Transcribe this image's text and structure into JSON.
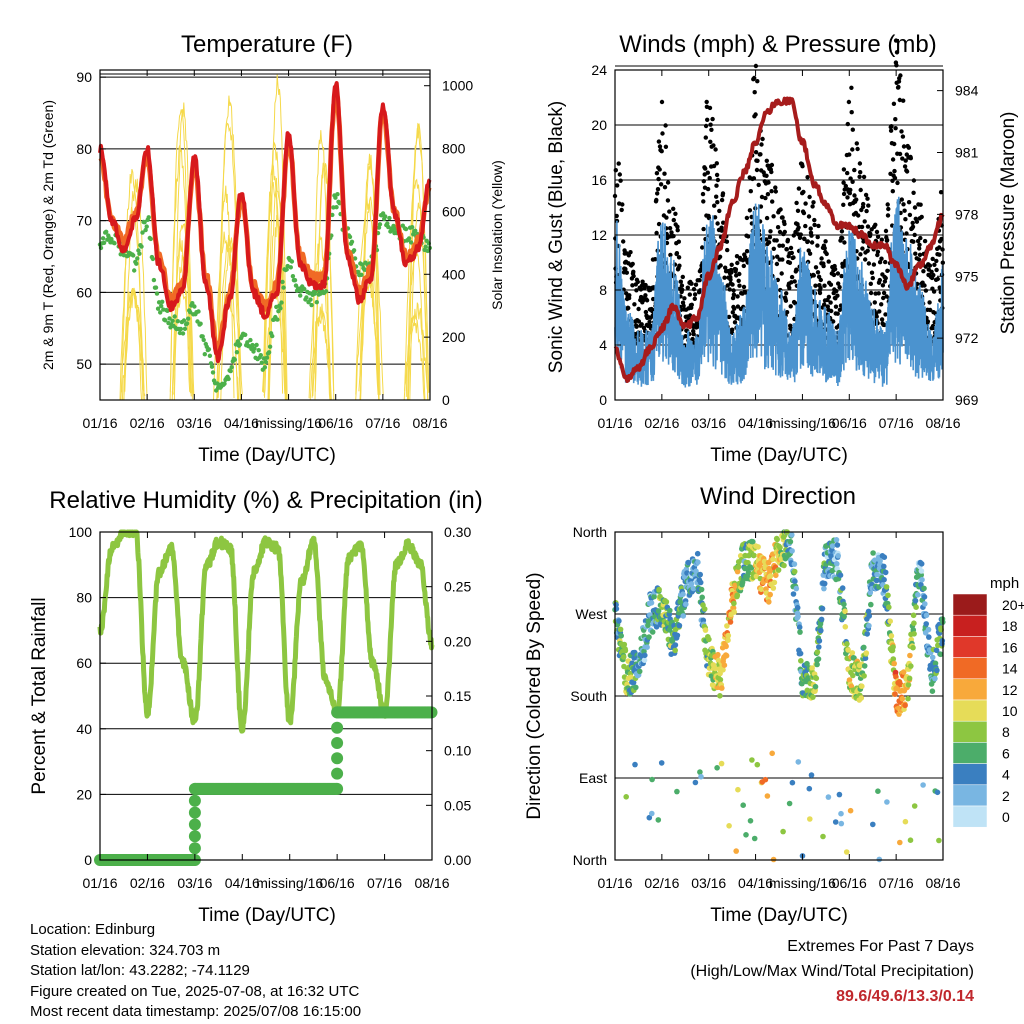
{
  "colors": {
    "temp2m": "#d7191c",
    "temp9m": "#f06a25",
    "dewpoint": "#4cb04a",
    "solar": "#f5d94a",
    "wind": "#4b93cf",
    "gust": "#000000",
    "pressure": "#a61c1c",
    "rh": "#8dc641",
    "precip": "#4cb04a",
    "extremes": "#c0282d"
  },
  "time_ticks": [
    "01/16",
    "02/16",
    "03/16",
    "04/16",
    "missing/16",
    "06/16",
    "07/16",
    "08/16"
  ],
  "xlabel": "Time (Day/UTC)",
  "panels": {
    "temperature": {
      "title": "Temperature (F)",
      "ylabel_left": "2m & 9m T (Red, Orange) & 2m Td (Green)",
      "ylabel_right": "Solar Insolation (Yellow)",
      "left_ticks": [
        "50",
        "60",
        "70",
        "80",
        "90"
      ],
      "right_ticks": [
        "0",
        "200",
        "400",
        "600",
        "800",
        "1000"
      ]
    },
    "winds": {
      "title": "Winds (mph) & Pressure (mb)",
      "ylabel_left": "Sonic Wind & Gust (Blue, Black)",
      "ylabel_right": "Station Pressure (Maroon)",
      "left_ticks": [
        "0",
        "4",
        "8",
        "12",
        "16",
        "20",
        "24"
      ],
      "right_ticks": [
        "969",
        "972",
        "975",
        "978",
        "981",
        "984"
      ]
    },
    "humidity": {
      "title": "Relative Humidity (%) & Precipitation (in)",
      "ylabel_left": "Percent & Total Rainfall",
      "left_ticks": [
        "0",
        "20",
        "40",
        "60",
        "80",
        "100"
      ],
      "right_ticks": [
        "0.00",
        "0.05",
        "0.10",
        "0.15",
        "0.20",
        "0.25",
        "0.30"
      ]
    },
    "direction": {
      "title": "Wind Direction",
      "ylabel_left": "Direction (Colored By Speed)",
      "left_ticks": [
        "North",
        "East",
        "South",
        "West",
        "North"
      ],
      "legend_title": "mph",
      "legend_labels": [
        "20+",
        "18",
        "16",
        "14",
        "12",
        "10",
        "8",
        "6",
        "4",
        "2",
        "0"
      ],
      "legend_colors": [
        "#9b1b1b",
        "#c8201f",
        "#e0382a",
        "#f06a25",
        "#f8a93b",
        "#e6dc58",
        "#8dc641",
        "#4cad6a",
        "#3a7fc0",
        "#79b6e2",
        "#bfe3f6"
      ]
    }
  },
  "info": {
    "location": "Location: Edinburg",
    "elevation": "Station elevation: 324.703 m",
    "latlon": "Station lat/lon: 43.2282; -74.1129",
    "created": "Figure created on Tue, 2025-07-08, at 16:32 UTC",
    "recent": "Most recent data timestamp: 2025/07/08 16:15:00",
    "extremes_title": "Extremes For Past 7 Days",
    "extremes_subtitle": "(High/Low/Max Wind/Total Precipitation)",
    "extremes_values": "89.6/49.6/13.3/0.14"
  },
  "chart_data": [
    {
      "type": "line",
      "title": "Temperature (F)",
      "xlabel": "Time (Day/UTC)",
      "ylabel": "2m & 9m T (Red, Orange) & 2m Td (Green)",
      "y2label": "Solar Insolation (Yellow)",
      "x_ticks": [
        "01/16",
        "02/16",
        "03/16",
        "04/16",
        "missing/16",
        "06/16",
        "07/16",
        "08/16"
      ],
      "ylim": [
        45,
        91
      ],
      "y2lim": [
        0,
        1050
      ],
      "x_days": [
        0,
        0.25,
        0.5,
        0.75,
        1,
        1.25,
        1.5,
        1.75,
        2,
        2.25,
        2.5,
        2.75,
        3,
        3.25,
        3.5,
        3.75,
        4,
        4.25,
        4.5,
        4.75,
        5,
        5.25,
        5.5,
        5.75,
        6,
        6.25,
        6.5,
        6.75,
        7
      ],
      "series": [
        {
          "name": "2m T",
          "values": [
            80,
            70,
            66,
            70,
            80,
            64,
            58,
            60,
            79,
            61,
            51,
            59,
            74,
            60,
            57,
            60,
            82,
            64,
            61,
            61,
            89,
            65,
            59,
            62,
            86,
            71,
            64,
            66,
            76
          ]
        },
        {
          "name": "9m T",
          "values": [
            79,
            70,
            67,
            71,
            79,
            65,
            59,
            61,
            78,
            62,
            52,
            60,
            73,
            61,
            58,
            61,
            81,
            65,
            62,
            62,
            88,
            66,
            60,
            63,
            85,
            71,
            65,
            67,
            75
          ]
        },
        {
          "name": "2m Td",
          "values": [
            67,
            68,
            66,
            64,
            70,
            58,
            56,
            55,
            58,
            52,
            47,
            49,
            54,
            52,
            50,
            57,
            64,
            60,
            59,
            60,
            73,
            68,
            63,
            64,
            70,
            69,
            68,
            68,
            66
          ]
        },
        {
          "name": "Solar Insolation",
          "peaks_W_m2": [
            1000,
            1000,
            990,
            1020,
            990,
            1010,
            980,
            1000
          ]
        }
      ]
    },
    {
      "type": "line",
      "title": "Winds (mph) & Pressure (mb)",
      "xlabel": "Time (Day/UTC)",
      "ylabel": "Sonic Wind & Gust (Blue, Black)",
      "y2label": "Station Pressure (Maroon)",
      "x_ticks": [
        "01/16",
        "02/16",
        "03/16",
        "04/16",
        "missing/16",
        "06/16",
        "07/16",
        "08/16"
      ],
      "ylim": [
        0,
        24
      ],
      "y2lim": [
        969,
        985
      ],
      "x_days": [
        0,
        0.25,
        0.5,
        0.75,
        1,
        1.25,
        1.5,
        1.75,
        2,
        2.25,
        2.5,
        2.75,
        3,
        3.25,
        3.5,
        3.75,
        4,
        4.25,
        4.5,
        4.75,
        5,
        5.25,
        5.5,
        5.75,
        6,
        6.25,
        6.5,
        6.75,
        7
      ],
      "series": [
        {
          "name": "Sonic Wind",
          "values": [
            8,
            4,
            3,
            3,
            8,
            6,
            3,
            3,
            9,
            6,
            3,
            4,
            9,
            7,
            5,
            3,
            7,
            5,
            4,
            3,
            8,
            6,
            4,
            3,
            9,
            7,
            5,
            3,
            6
          ]
        },
        {
          "name": "Gust",
          "values": [
            14,
            8,
            6,
            6,
            15,
            10,
            6,
            6,
            16,
            11,
            7,
            8,
            17,
            13,
            10,
            8,
            12,
            10,
            8,
            7,
            16,
            12,
            9,
            8,
            19,
            13,
            10,
            7,
            11
          ]
        },
        {
          "name": "Station Pressure",
          "values": [
            971.5,
            970,
            970.5,
            971.5,
            972.5,
            973.5,
            972.5,
            973,
            975,
            976.5,
            978.5,
            980,
            981.5,
            983,
            983.5,
            983.5,
            981.5,
            979.5,
            978.5,
            977.5,
            977.5,
            977,
            976.5,
            976.5,
            975.5,
            974.5,
            975.5,
            976.5,
            978
          ]
        }
      ]
    },
    {
      "type": "line",
      "title": "Relative Humidity (%) & Precipitation (in)",
      "xlabel": "Time (Day/UTC)",
      "ylabel": "Percent & Total Rainfall",
      "x_ticks": [
        "01/16",
        "02/16",
        "03/16",
        "04/16",
        "missing/16",
        "06/16",
        "07/16",
        "08/16"
      ],
      "ylim": [
        0,
        100
      ],
      "y2lim": [
        0,
        0.3
      ],
      "series": [
        {
          "name": "Relative Humidity",
          "x_days": [
            0,
            0.25,
            0.5,
            0.75,
            1,
            1.25,
            1.5,
            1.75,
            2,
            2.25,
            2.5,
            2.75,
            3,
            3.25,
            3.5,
            3.75,
            4,
            4.25,
            4.5,
            4.75,
            5,
            5.25,
            5.5,
            5.75,
            6,
            6.25,
            6.5,
            6.75,
            7
          ],
          "values": [
            70,
            95,
            100,
            100,
            45,
            88,
            95,
            60,
            42,
            90,
            97,
            95,
            40,
            88,
            97,
            95,
            42,
            85,
            97,
            55,
            45,
            92,
            96,
            60,
            45,
            90,
            96,
            90,
            66
          ]
        },
        {
          "name": "Total Precipitation",
          "x_days": [
            0,
            1.99,
            2.0,
            2.01,
            5.0,
            5.01,
            7
          ],
          "values": [
            0.0,
            0.0,
            0.03,
            0.065,
            0.065,
            0.135,
            0.135
          ]
        }
      ]
    },
    {
      "type": "scatter",
      "title": "Wind Direction",
      "xlabel": "Time (Day/UTC)",
      "ylabel": "Direction (Colored By Speed)",
      "x_ticks": [
        "01/16",
        "02/16",
        "03/16",
        "04/16",
        "missing/16",
        "06/16",
        "07/16",
        "08/16"
      ],
      "y_ticks": [
        "North",
        "East",
        "South",
        "West",
        "North"
      ],
      "ylim": [
        0,
        360
      ],
      "colorbar": {
        "title": "mph",
        "labels": [
          "20+",
          "18",
          "16",
          "14",
          "12",
          "10",
          "8",
          "6",
          "4",
          "2",
          "0"
        ]
      },
      "x_days": [
        0,
        0.25,
        0.5,
        0.75,
        1,
        1.25,
        1.5,
        1.75,
        2,
        2.25,
        2.5,
        2.75,
        3,
        3.25,
        3.5,
        3.75,
        4,
        4.25,
        4.5,
        4.75,
        5,
        5.25,
        5.5,
        5.75,
        6,
        6.25,
        6.5,
        6.75,
        7
      ],
      "direction_deg": [
        270,
        200,
        210,
        270,
        280,
        240,
        300,
        320,
        220,
        200,
        285,
        330,
        330,
        300,
        340,
        350,
        200,
        190,
        330,
        330,
        210,
        190,
        320,
        310,
        180,
        190,
        330,
        200,
        260
      ],
      "speed_mph": [
        5,
        8,
        4,
        3,
        7,
        6,
        4,
        3,
        8,
        10,
        12,
        5,
        9,
        12,
        10,
        4,
        5,
        8,
        4,
        3,
        9,
        8,
        4,
        3,
        13,
        10,
        3,
        4,
        6
      ]
    }
  ]
}
